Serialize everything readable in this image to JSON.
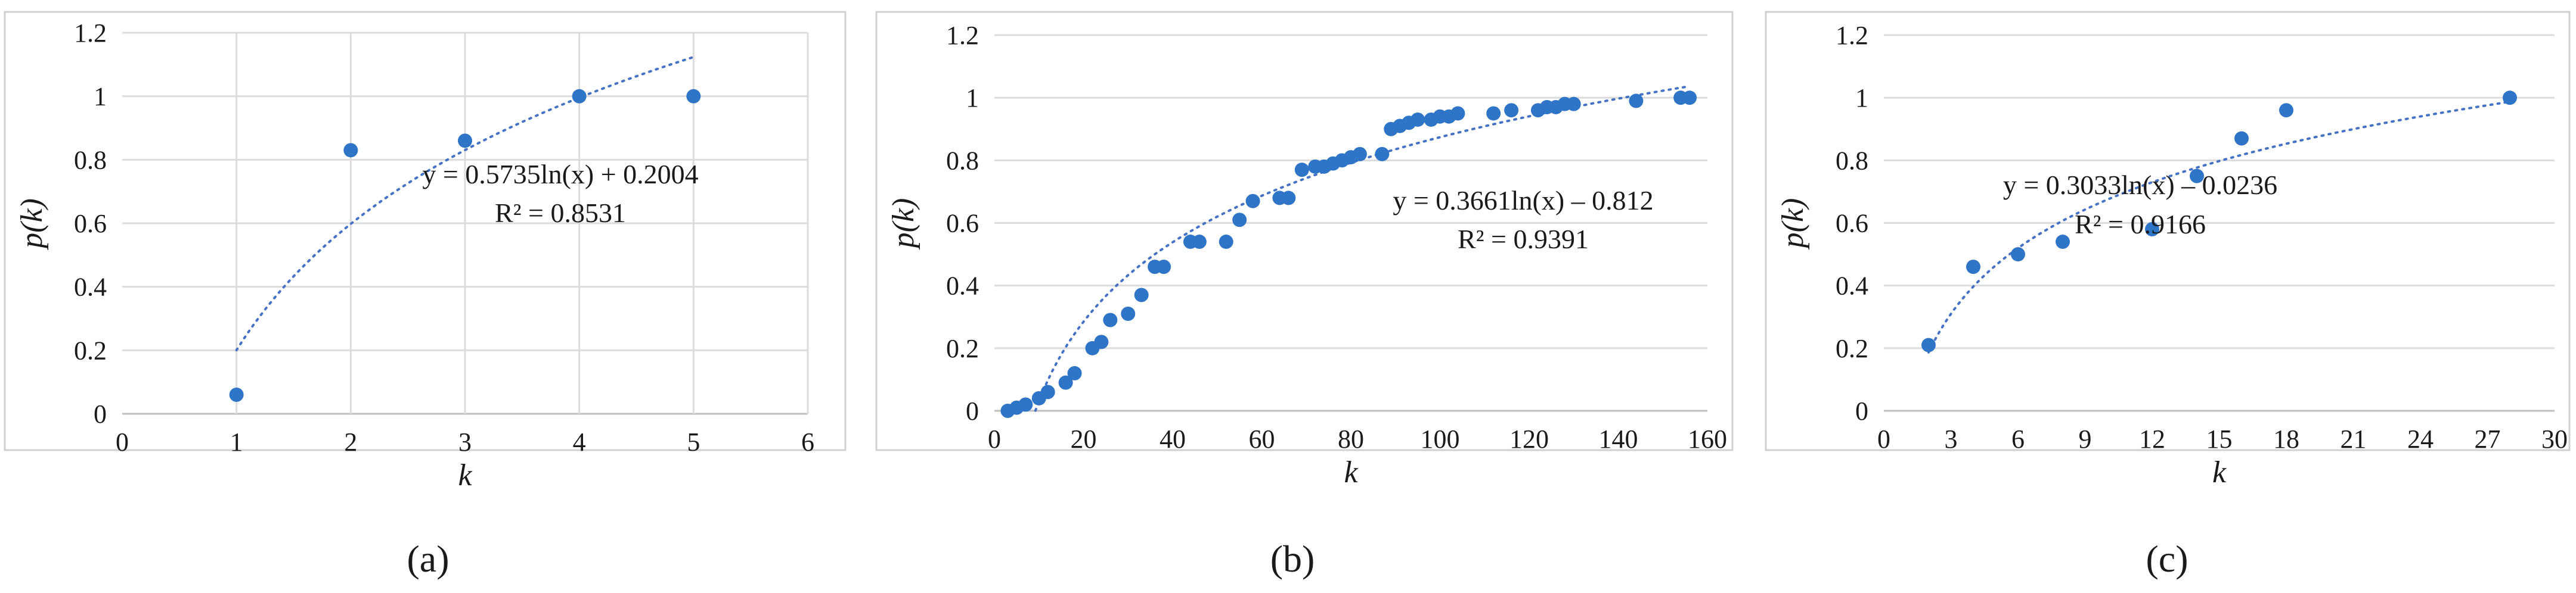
{
  "colors": {
    "point": "#2e75c8",
    "trendline": "#4472c4",
    "grid": "#dcdcdc"
  },
  "chart_data": [
    {
      "type": "scatter",
      "panel_label": "(a)",
      "xlabel": "k",
      "ylabel": "p(k)",
      "xlim": [
        0,
        6
      ],
      "ylim": [
        0,
        1.2
      ],
      "xticks": [
        "0",
        "1",
        "2",
        "3",
        "4",
        "5",
        "6"
      ],
      "yticks": [
        "0",
        "0.2",
        "0.4",
        "0.6",
        "0.8",
        "1",
        "1.2"
      ],
      "x": [
        1,
        2,
        3,
        4,
        5
      ],
      "y": [
        0.06,
        0.83,
        0.86,
        1.0,
        1.0
      ],
      "trendline": {
        "type": "log",
        "a": 0.5735,
        "b": 0.2004,
        "x_range": [
          1,
          5
        ]
      },
      "equation": "y = 0.5735ln(x) + 0.2004",
      "r_squared": "R² = 0.8531"
    },
    {
      "type": "scatter",
      "panel_label": "(b)",
      "xlabel": "k",
      "ylabel": "p(k)",
      "xlim": [
        0,
        160
      ],
      "ylim": [
        0,
        1.2
      ],
      "xticks": [
        "0",
        "20",
        "40",
        "60",
        "80",
        "100",
        "120",
        "140",
        "160"
      ],
      "yticks": [
        "0",
        "0.2",
        "0.4",
        "0.6",
        "0.8",
        "1",
        "1.2"
      ],
      "x": [
        3,
        5,
        7,
        10,
        12,
        16,
        18,
        22,
        24,
        26,
        30,
        33,
        36,
        38,
        44,
        46,
        52,
        55,
        58,
        64,
        66,
        69,
        72,
        74,
        76,
        78,
        80,
        82,
        87,
        89,
        91,
        93,
        95,
        98,
        100,
        102,
        104,
        112,
        116,
        122,
        124,
        126,
        128,
        130,
        144,
        154,
        156
      ],
      "y": [
        0.0,
        0.01,
        0.02,
        0.04,
        0.06,
        0.09,
        0.12,
        0.2,
        0.22,
        0.29,
        0.31,
        0.37,
        0.46,
        0.46,
        0.54,
        0.54,
        0.54,
        0.61,
        0.67,
        0.68,
        0.68,
        0.77,
        0.78,
        0.78,
        0.79,
        0.8,
        0.81,
        0.82,
        0.82,
        0.9,
        0.91,
        0.92,
        0.93,
        0.93,
        0.94,
        0.94,
        0.95,
        0.95,
        0.96,
        0.96,
        0.97,
        0.97,
        0.98,
        0.98,
        0.99,
        1.0,
        1.0
      ],
      "trendline": {
        "type": "log",
        "a": 0.3661,
        "b": -0.812,
        "x_range": [
          9.2,
          156
        ]
      },
      "equation": "y = 0.3661ln(x) – 0.812",
      "r_squared": "R² = 0.9391"
    },
    {
      "type": "scatter",
      "panel_label": "(c)",
      "xlabel": "k",
      "ylabel": "p(k)",
      "xlim": [
        0,
        30
      ],
      "ylim": [
        0,
        1.2
      ],
      "xticks": [
        "0",
        "3",
        "6",
        "9",
        "12",
        "15",
        "18",
        "21",
        "24",
        "27",
        "30"
      ],
      "yticks": [
        "0",
        "0.2",
        "0.4",
        "0.6",
        "0.8",
        "1",
        "1.2"
      ],
      "x": [
        2,
        4,
        6,
        8,
        12,
        14,
        16,
        18,
        28
      ],
      "y": [
        0.21,
        0.46,
        0.5,
        0.54,
        0.58,
        0.75,
        0.87,
        0.96,
        1.0
      ],
      "trendline": {
        "type": "log",
        "a": 0.3033,
        "b": -0.0236,
        "x_range": [
          2,
          28
        ]
      },
      "equation": "y = 0.3033ln(x) – 0.0236",
      "r_squared": "R² = 0.9166"
    }
  ]
}
